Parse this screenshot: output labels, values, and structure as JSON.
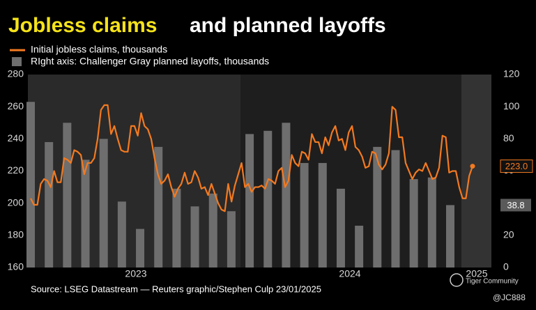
{
  "chart_data": {
    "type": "bar_line",
    "title_highlight": "Jobless claims",
    "title_rest": "and planned layoffs",
    "x_labels": [
      "2023",
      "2024",
      "2025"
    ],
    "series": [
      {
        "name": "Initial jobless claims, thousands",
        "type": "line",
        "color": "#f47a20",
        "axis": "y",
        "values": [
          203,
          199,
          199,
          212,
          215,
          214,
          210,
          220,
          213,
          213,
          228,
          227,
          225,
          233,
          232,
          230,
          218,
          225,
          225,
          228,
          240,
          258,
          261,
          261,
          243,
          248,
          240,
          233,
          232,
          232,
          248,
          248,
          242,
          256,
          248,
          246,
          240,
          228,
          218,
          212,
          214,
          218,
          210,
          204,
          209,
          212,
          219,
          212,
          213,
          220,
          216,
          209,
          210,
          205,
          212,
          206,
          200,
          196,
          195,
          212,
          201,
          211,
          218,
          225,
          210,
          212,
          207,
          210,
          210,
          211,
          209,
          215,
          214,
          212,
          220,
          222,
          210,
          214,
          230,
          225,
          223,
          232,
          231,
          227,
          243,
          238,
          238,
          231,
          241,
          236,
          244,
          248,
          239,
          240,
          233,
          244,
          248,
          235,
          233,
          229,
          222,
          223,
          232,
          231,
          224,
          221,
          224,
          231,
          260,
          258,
          241,
          241,
          225,
          220,
          215,
          219,
          221,
          220,
          225,
          220,
          215,
          216,
          222,
          242,
          241,
          219,
          220,
          220,
          210,
          203,
          203,
          217,
          223
        ],
        "last_label": "223.0"
      },
      {
        "name": "RIght axis: Challenger Gray planned layoffs, thousands",
        "type": "bar",
        "color": "#6e6e6e",
        "axis": "y2",
        "values": [
          103,
          78,
          90,
          67,
          80,
          41,
          24,
          75,
          49,
          38,
          46,
          35,
          83,
          85,
          90,
          65,
          65,
          49,
          26,
          75,
          73,
          55,
          56,
          38.8
        ],
        "last_label": "38.8"
      }
    ],
    "ylim": [
      160,
      280
    ],
    "yticks": [
      160,
      180,
      200,
      220,
      240,
      260,
      280
    ],
    "y2lim": [
      0,
      120
    ],
    "y2ticks": [
      0,
      20,
      40,
      60,
      80,
      100,
      120
    ],
    "source": "Source: LSEG Datastream — Reuters graphic/Stephen Culp 23/01/2025",
    "watermark": "Tiger Community",
    "handle": "@JC888"
  }
}
